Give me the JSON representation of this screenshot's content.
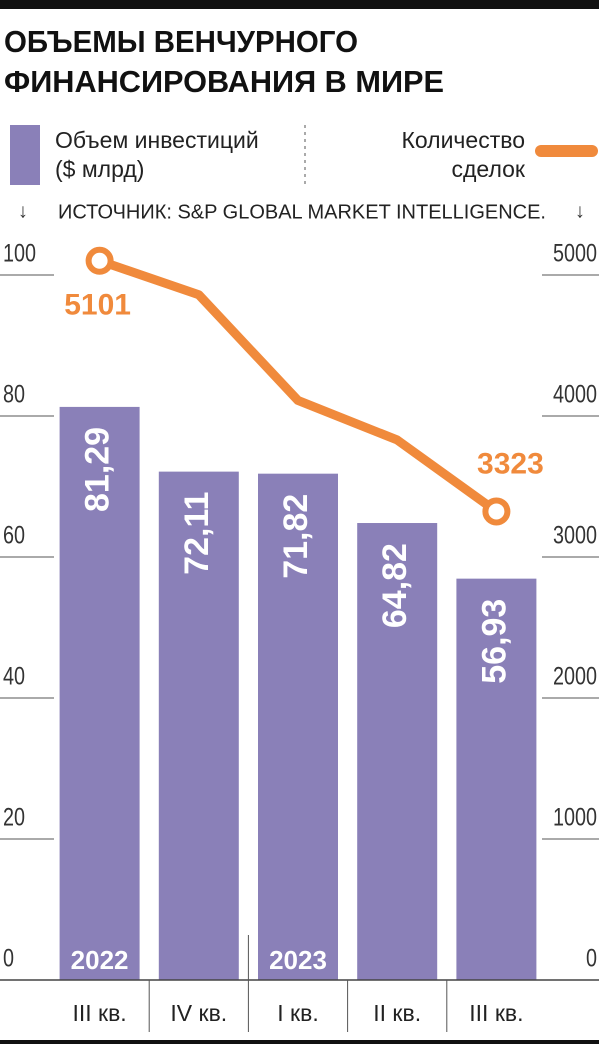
{
  "chart_data": {
    "type": "bar",
    "title": [
      "ОБЪЕМЫ ВЕНЧУРНОГО",
      "ФИНАНСИРОВАНИЯ В МИРЕ"
    ],
    "source": "ИСТОЧНИК: S&P GLOBAL MARKET INTELLIGENCE.",
    "categories": [
      "III кв.",
      "IV кв.",
      "I кв.",
      "II кв.",
      "III кв."
    ],
    "years": [
      {
        "label": "2022",
        "index": 0
      },
      {
        "label": "2023",
        "index": 2
      }
    ],
    "series": [
      {
        "name": "Объем инвестиций ($ млрд)",
        "type": "bar",
        "color": "#8a80b8",
        "values": [
          81.29,
          72.11,
          71.82,
          64.82,
          56.93
        ],
        "value_labels": [
          "81,29",
          "72,11",
          "71,82",
          "64,82",
          "56,93"
        ]
      },
      {
        "name": "Количество сделок",
        "type": "line",
        "axis": "y2",
        "color": "#f08a3c",
        "values": [
          5101,
          4860,
          4110,
          3830,
          3323
        ],
        "value_labels": [
          "5101",
          null,
          null,
          null,
          "3323"
        ]
      }
    ],
    "ylim": [
      0,
      100
    ],
    "yticks": [
      0,
      20,
      40,
      60,
      80,
      100
    ],
    "y2lim": [
      0,
      5000
    ],
    "y2ticks": [
      0,
      1000,
      2000,
      3000,
      4000,
      5000
    ]
  }
}
